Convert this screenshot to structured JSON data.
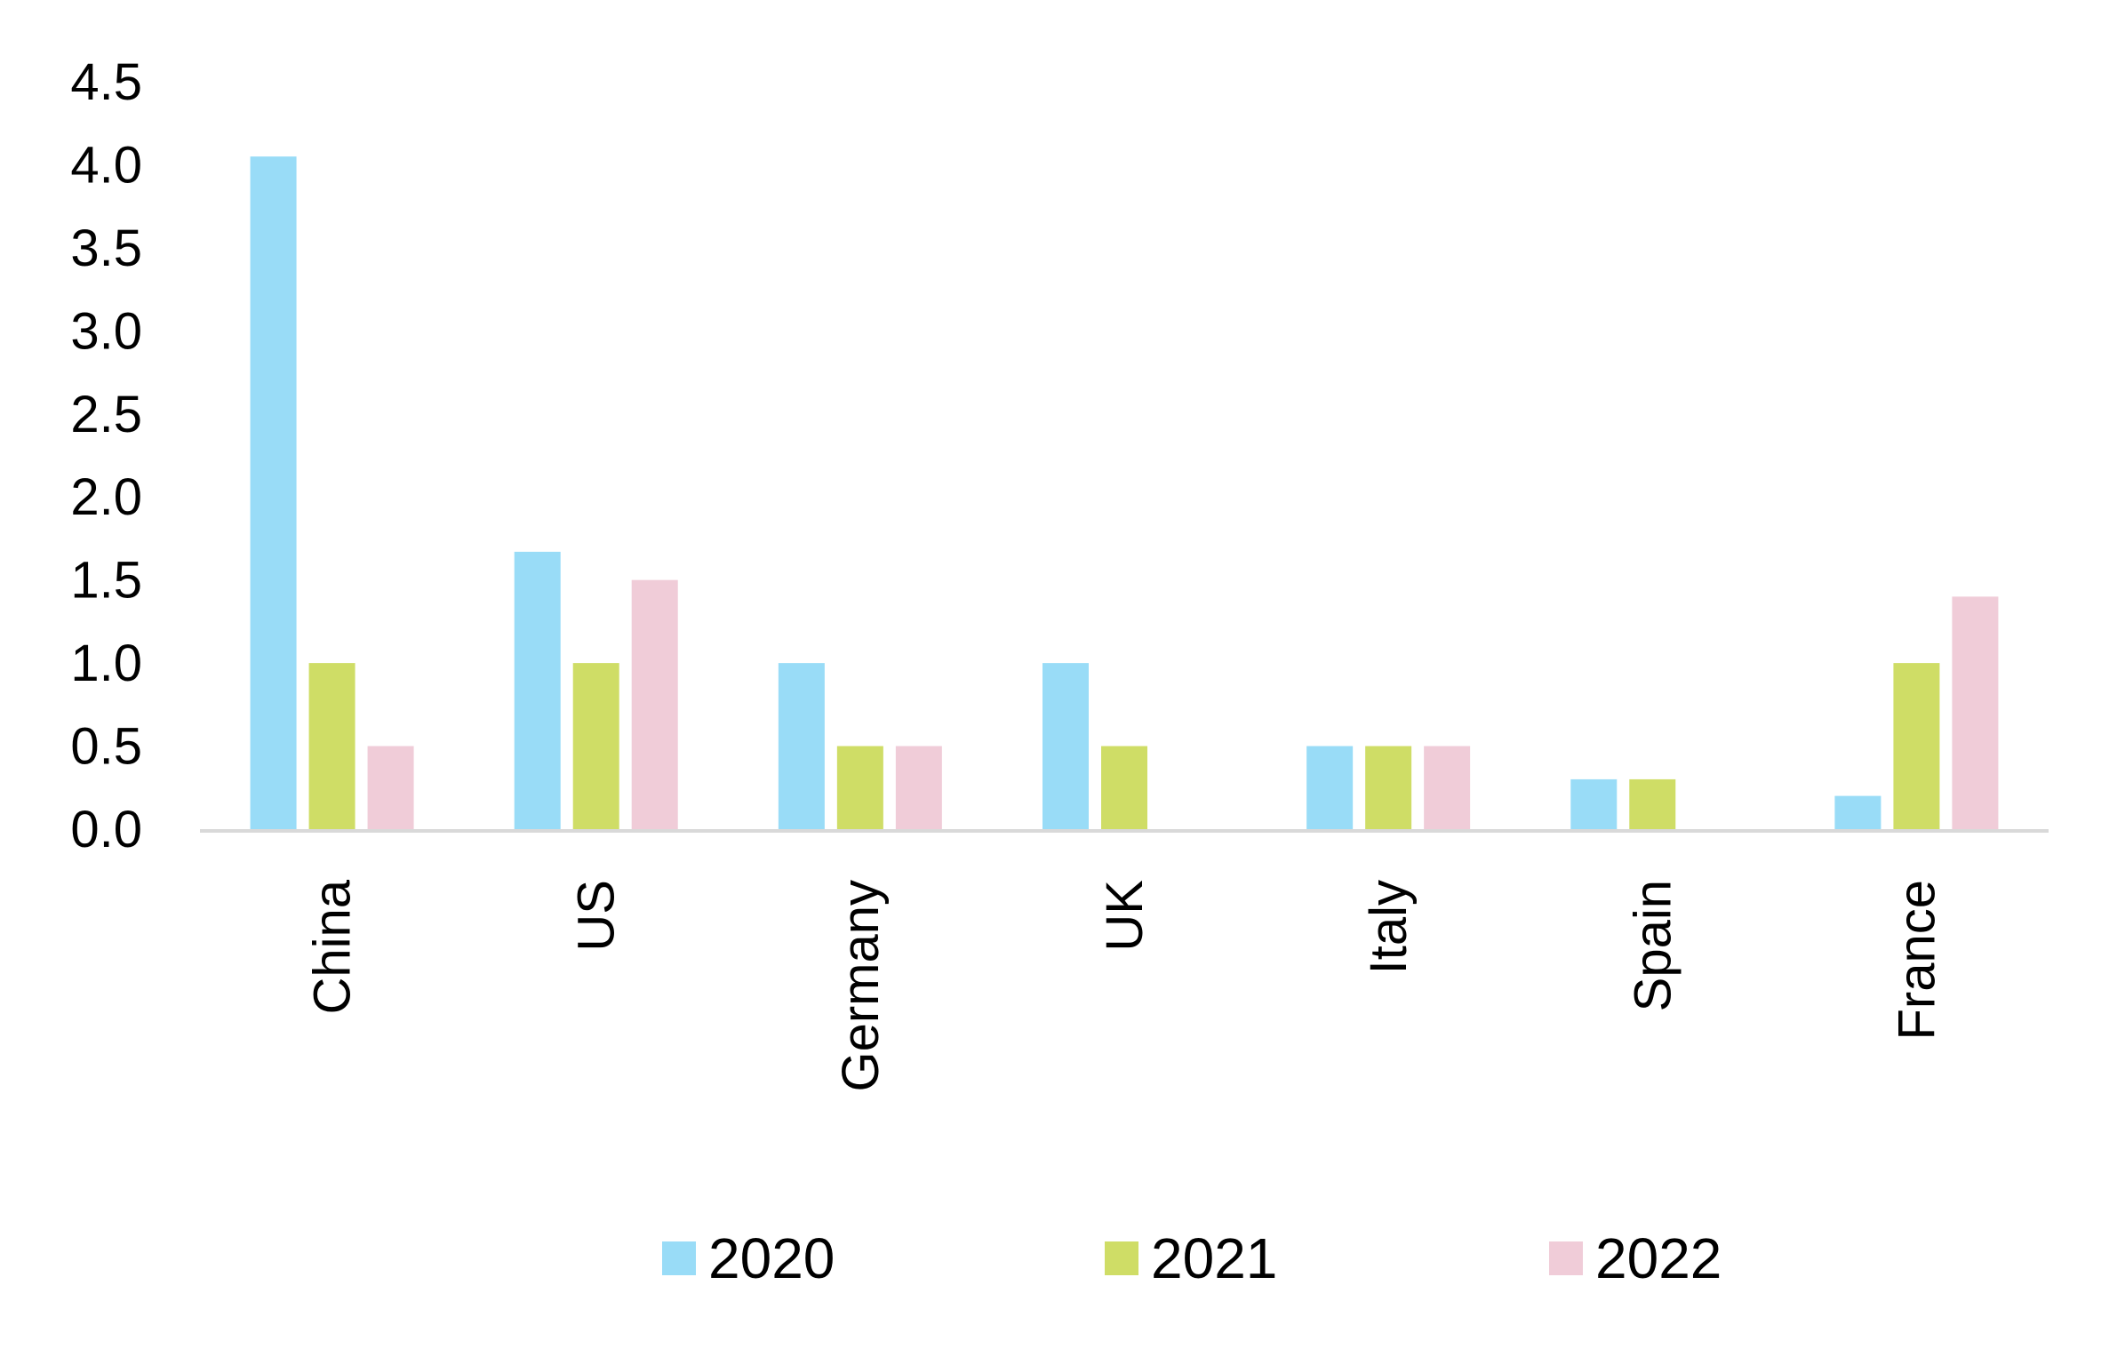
{
  "chart_data": {
    "type": "bar",
    "categories": [
      "China",
      "US",
      "Germany",
      "UK",
      "Italy",
      "Spain",
      "France"
    ],
    "series": [
      {
        "name": "2020",
        "color": "#99dcf7",
        "values": [
          4.05,
          1.67,
          1.0,
          1.0,
          0.5,
          0.3,
          0.2
        ]
      },
      {
        "name": "2021",
        "color": "#cfdd66",
        "values": [
          1.0,
          1.0,
          0.5,
          0.5,
          0.5,
          0.3,
          1.0
        ]
      },
      {
        "name": "2022",
        "color": "#f0ccd8",
        "values": [
          0.5,
          1.5,
          0.5,
          null,
          0.5,
          null,
          1.4
        ]
      }
    ],
    "ylim": [
      0,
      4.5
    ],
    "yticks": [
      "0.0",
      "0.5",
      "1.0",
      "1.5",
      "2.0",
      "2.5",
      "3.0",
      "3.5",
      "4.0",
      "4.5"
    ],
    "title": "",
    "xlabel": "",
    "ylabel": "",
    "grid": false,
    "legend_position": "bottom",
    "axis_color": "#d9d9d9"
  }
}
